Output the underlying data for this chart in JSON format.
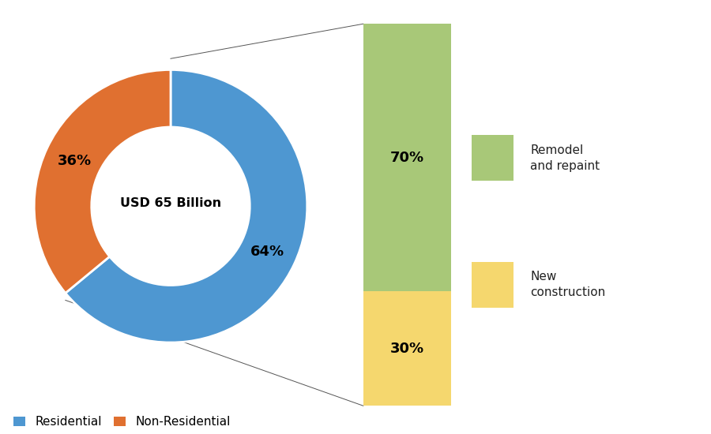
{
  "donut_values": [
    64,
    36
  ],
  "donut_colors": [
    "#4E97D1",
    "#E07030"
  ],
  "donut_labels": [
    "64%",
    "36%"
  ],
  "donut_center_text": "USD 65 Billion",
  "bar_values": [
    70,
    30
  ],
  "bar_colors": [
    "#A8C878",
    "#F5D76E"
  ],
  "bar_labels": [
    "70%",
    "30%"
  ],
  "legend_donut": [
    "Residential",
    "Non-Residential"
  ],
  "legend_bar": [
    "Remodel\nand repaint",
    "New\nconstruction"
  ],
  "background_color": "#ffffff"
}
